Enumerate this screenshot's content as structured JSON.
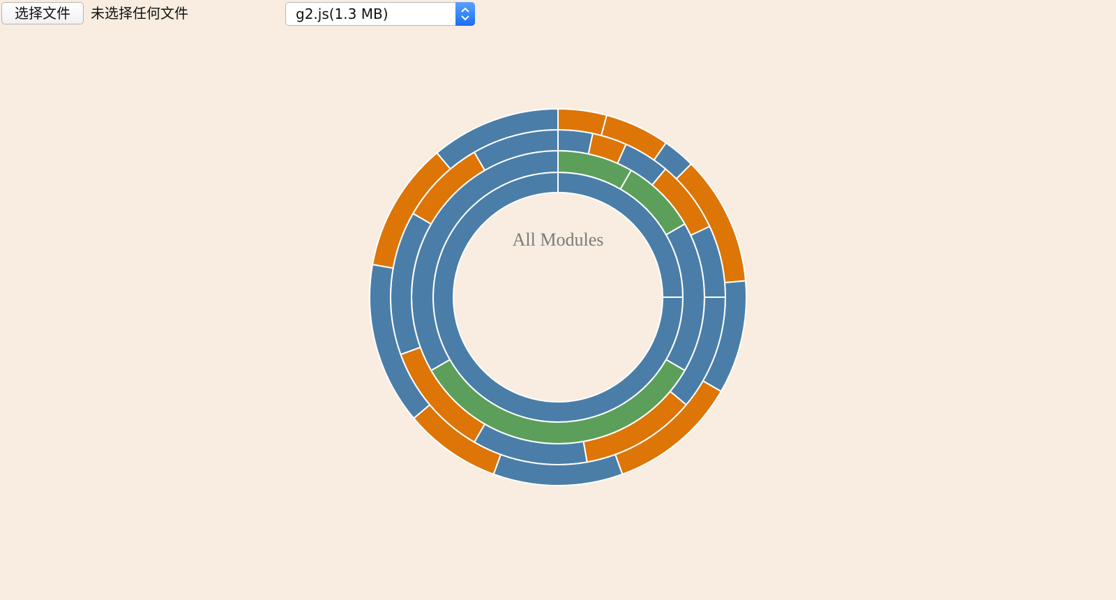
{
  "file_picker": {
    "button_label": "选择文件",
    "status_text": "未选择任何文件"
  },
  "bundle_select": {
    "selected": "g2.js(1.3 MB)"
  },
  "colors": {
    "background": "#f8ede0",
    "blue": "#4a7ea8",
    "green": "#5c9f5a",
    "orange": "#dd7507",
    "white": "#ffffff",
    "center_text": "#7a7a7a"
  },
  "chart_data": {
    "type": "sunburst",
    "title": "All Modules",
    "rings": [
      {
        "level": 1,
        "color": "blue",
        "segments": [
          {
            "start": 0,
            "end": 90
          },
          {
            "start": 90,
            "end": 360
          }
        ]
      },
      {
        "level": 2,
        "color": "mixed",
        "segments": [
          {
            "start": 0,
            "end": 30,
            "color": "green"
          },
          {
            "start": 30,
            "end": 60,
            "color": "green"
          },
          {
            "start": 60,
            "end": 120,
            "color": "blue"
          },
          {
            "start": 120,
            "end": 240,
            "color": "green"
          },
          {
            "start": 240,
            "end": 360,
            "color": "blue"
          }
        ]
      },
      {
        "level": 3,
        "color": "mixed",
        "segments": [
          {
            "start": 0,
            "end": 12,
            "color": "blue"
          },
          {
            "start": 12,
            "end": 24,
            "color": "orange"
          },
          {
            "start": 24,
            "end": 40,
            "color": "blue"
          },
          {
            "start": 40,
            "end": 65,
            "color": "orange"
          },
          {
            "start": 65,
            "end": 90,
            "color": "blue"
          },
          {
            "start": 90,
            "end": 130,
            "color": "blue"
          },
          {
            "start": 130,
            "end": 170,
            "color": "orange"
          },
          {
            "start": 170,
            "end": 210,
            "color": "blue"
          },
          {
            "start": 210,
            "end": 250,
            "color": "orange"
          },
          {
            "start": 250,
            "end": 300,
            "color": "blue"
          },
          {
            "start": 300,
            "end": 330,
            "color": "orange"
          },
          {
            "start": 330,
            "end": 360,
            "color": "blue"
          }
        ]
      },
      {
        "level": 4,
        "color": "mixed",
        "segments": [
          {
            "start": 0,
            "end": 15,
            "color": "orange"
          },
          {
            "start": 15,
            "end": 35,
            "color": "orange"
          },
          {
            "start": 35,
            "end": 45,
            "color": "blue"
          },
          {
            "start": 45,
            "end": 85,
            "color": "orange"
          },
          {
            "start": 85,
            "end": 120,
            "color": "blue"
          },
          {
            "start": 120,
            "end": 160,
            "color": "orange"
          },
          {
            "start": 160,
            "end": 200,
            "color": "blue"
          },
          {
            "start": 200,
            "end": 230,
            "color": "orange"
          },
          {
            "start": 230,
            "end": 280,
            "color": "blue"
          },
          {
            "start": 280,
            "end": 320,
            "color": "orange"
          },
          {
            "start": 320,
            "end": 360,
            "color": "blue"
          }
        ]
      }
    ]
  }
}
